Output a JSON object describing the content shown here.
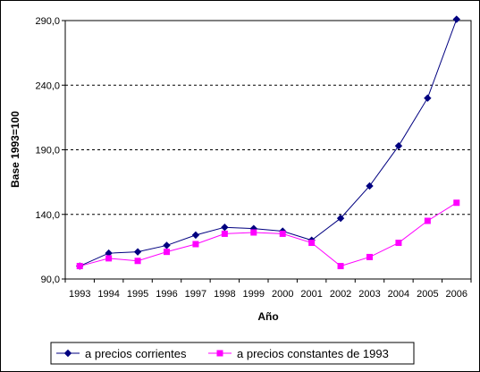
{
  "chart_data": {
    "type": "line",
    "title": "",
    "xlabel": "Año",
    "ylabel": "Base 1993=100",
    "categories": [
      "1993",
      "1994",
      "1995",
      "1996",
      "1997",
      "1998",
      "1999",
      "2000",
      "2001",
      "2002",
      "2003",
      "2004",
      "2005",
      "2006"
    ],
    "ylim": [
      90,
      290
    ],
    "yticks": [
      90,
      140,
      190,
      240,
      290
    ],
    "ytick_labels": [
      "90,0",
      "140,0",
      "190,0",
      "240,0",
      "290,0"
    ],
    "grid": "horizontal dashed",
    "legend_position": "bottom",
    "series": [
      {
        "name": "a precios corrientes",
        "color": "#000080",
        "marker": "diamond",
        "values": [
          100,
          110,
          111,
          116,
          124,
          130,
          129,
          127,
          120,
          137,
          162,
          193,
          230,
          291
        ]
      },
      {
        "name": "a precios constantes de 1993",
        "color": "#ff00ff",
        "marker": "square",
        "values": [
          100,
          106,
          104,
          111,
          117,
          125,
          126,
          125,
          118,
          100,
          107,
          118,
          135,
          149
        ]
      }
    ]
  }
}
